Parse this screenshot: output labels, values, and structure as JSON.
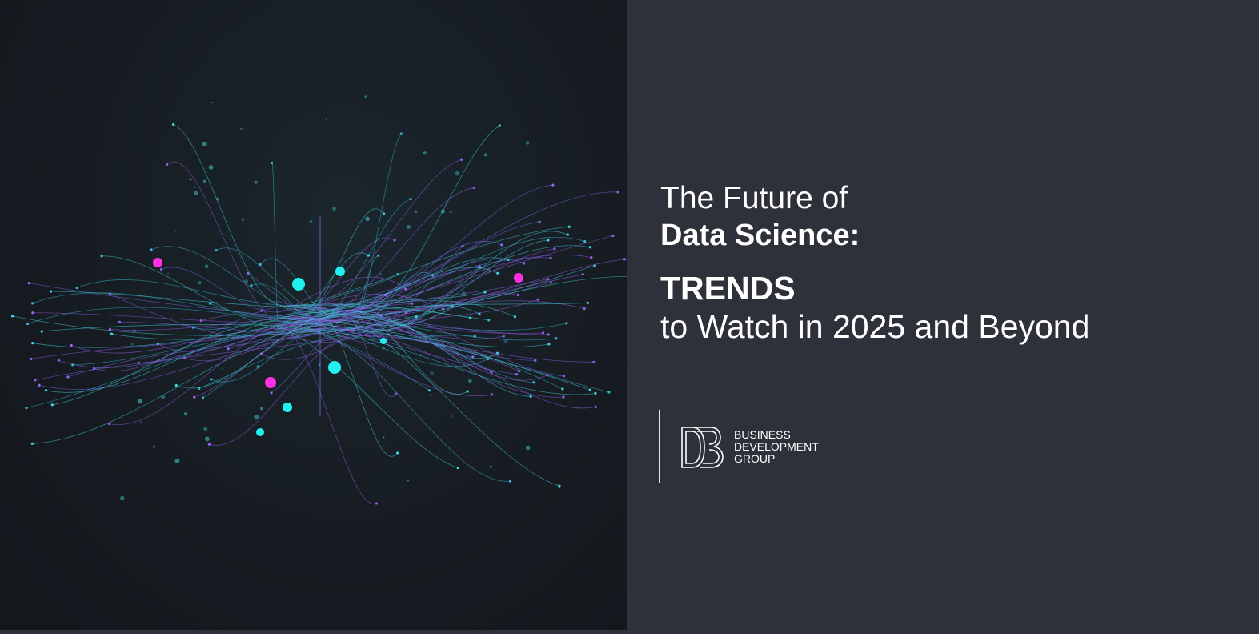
{
  "headline": {
    "line1": "The Future of",
    "line2": "Data Science:",
    "line3": "TRENDS",
    "line4": "to Watch in 2025 and Beyond"
  },
  "logo": {
    "line1": "BUSINESS",
    "line2": "DEVELOPMENT",
    "line3": "GROUP"
  }
}
